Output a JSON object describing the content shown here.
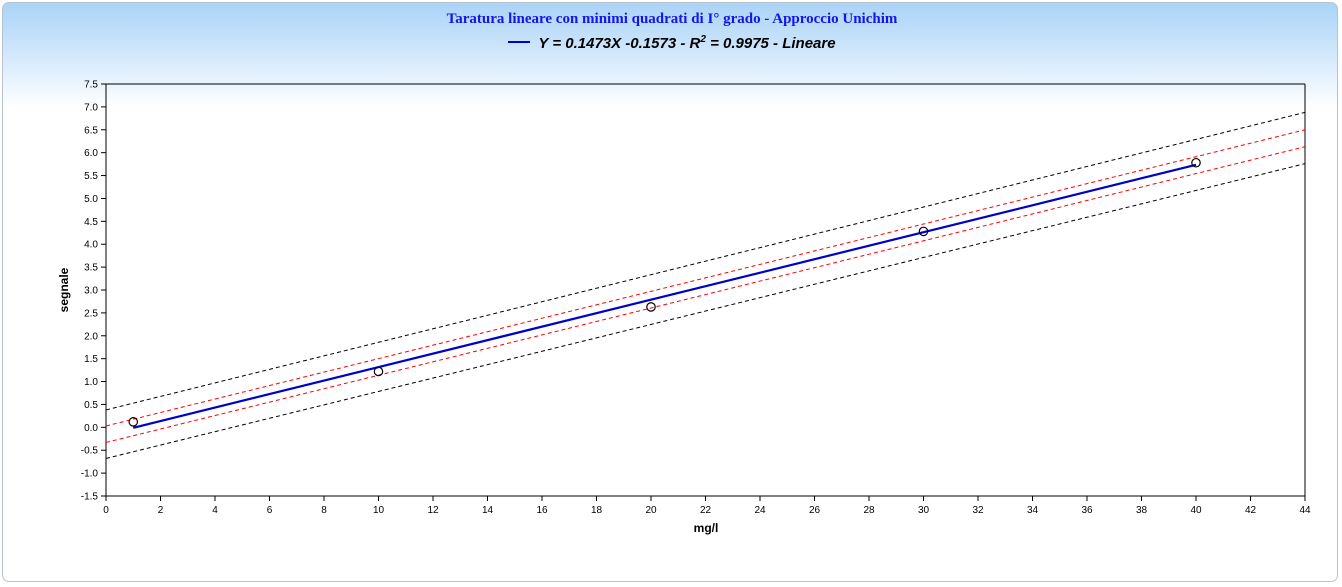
{
  "chart_data": {
    "type": "scatter",
    "title": "Taratura lineare con minimi quadrati di I° grado - Approccio Unichim",
    "legend": {
      "name_prefix": "Y = 0.1473X -0.1573 - R",
      "name_sup": "2",
      "name_suffix": " = 0.9975 - Lineare",
      "color": "#0000c8"
    },
    "xlabel": "mg/l",
    "ylabel": "segnale",
    "xlim": [
      0,
      44
    ],
    "ylim": [
      -1.5,
      7.5
    ],
    "x_ticks": [
      "0",
      "2",
      "4",
      "6",
      "8",
      "10",
      "12",
      "14",
      "16",
      "18",
      "20",
      "22",
      "24",
      "26",
      "28",
      "30",
      "32",
      "34",
      "36",
      "38",
      "40",
      "42",
      "44"
    ],
    "y_ticks": [
      "-1.5",
      "-1.0",
      "-0.5",
      "0.0",
      "0.5",
      "1.0",
      "1.5",
      "2.0",
      "2.5",
      "3.0",
      "3.5",
      "4.0",
      "4.5",
      "5.0",
      "5.5",
      "6.0",
      "6.5",
      "7.0",
      "7.5"
    ],
    "points": [
      {
        "x": 1,
        "y": 0.12
      },
      {
        "x": 10,
        "y": 1.22
      },
      {
        "x": 20,
        "y": 2.63
      },
      {
        "x": 30,
        "y": 4.28
      },
      {
        "x": 40,
        "y": 5.78
      }
    ],
    "fit_line": {
      "slope": 0.1473,
      "intercept": -0.1573,
      "x_range": [
        1,
        40
      ],
      "color": "#0000c8"
    },
    "confidence_band": {
      "upper": [
        [
          0,
          0.03
        ],
        [
          44,
          6.5
        ]
      ],
      "lower": [
        [
          0,
          -0.33
        ],
        [
          44,
          6.13
        ]
      ],
      "color": "#ff0000"
    },
    "prediction_band": {
      "upper": [
        [
          0,
          0.38
        ],
        [
          44,
          6.88
        ]
      ],
      "lower": [
        [
          0,
          -0.68
        ],
        [
          44,
          5.76
        ]
      ],
      "color": "#000000"
    },
    "grid": false
  }
}
